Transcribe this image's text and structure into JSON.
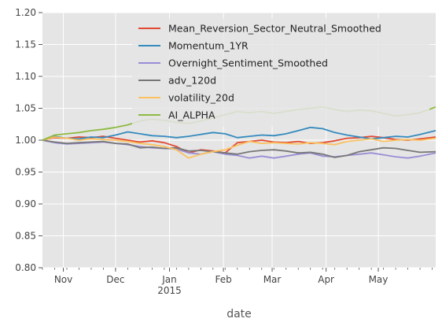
{
  "chart_data": {
    "type": "line",
    "title": "",
    "xlabel": "date",
    "ylabel": "",
    "ylim": [
      0.8,
      1.2
    ],
    "xlim": [
      "2014-10-20",
      "2015-06-03"
    ],
    "grid": true,
    "legend_position": "top-right",
    "y_ticks": [
      {
        "value": 0.8,
        "label": "0.80"
      },
      {
        "value": 0.85,
        "label": "0.85"
      },
      {
        "value": 0.9,
        "label": "0.90"
      },
      {
        "value": 0.95,
        "label": "0.95"
      },
      {
        "value": 1.0,
        "label": "1.00"
      },
      {
        "value": 1.05,
        "label": "1.05"
      },
      {
        "value": 1.1,
        "label": "1.10"
      },
      {
        "value": 1.15,
        "label": "1.15"
      },
      {
        "value": 1.2,
        "label": "1.20"
      }
    ],
    "x_ticks": [
      {
        "date": "2014-11-01",
        "label": "Nov",
        "sublabel": ""
      },
      {
        "date": "2014-12-01",
        "label": "Dec",
        "sublabel": ""
      },
      {
        "date": "2015-01-01",
        "label": "Jan",
        "sublabel": "2015"
      },
      {
        "date": "2015-02-01",
        "label": "Feb",
        "sublabel": ""
      },
      {
        "date": "2015-03-01",
        "label": "Mar",
        "sublabel": ""
      },
      {
        "date": "2015-04-01",
        "label": "Apr",
        "sublabel": ""
      },
      {
        "date": "2015-05-01",
        "label": "May",
        "sublabel": ""
      }
    ],
    "series": [
      {
        "name": "Mean_Reversion_Sector_Neutral_Smoothed",
        "color": "#E24A33",
        "points": [
          [
            "2014-10-20",
            1.0
          ],
          [
            "2014-10-27",
            1.004
          ],
          [
            "2014-11-03",
            1.003
          ],
          [
            "2014-11-10",
            1.005
          ],
          [
            "2014-11-17",
            1.004
          ],
          [
            "2014-11-24",
            1.006
          ],
          [
            "2014-12-01",
            1.003
          ],
          [
            "2014-12-08",
            1.0
          ],
          [
            "2014-12-15",
            0.997
          ],
          [
            "2014-12-22",
            0.999
          ],
          [
            "2014-12-29",
            0.996
          ],
          [
            "2015-01-05",
            0.99
          ],
          [
            "2015-01-12",
            0.98
          ],
          [
            "2015-01-19",
            0.985
          ],
          [
            "2015-01-26",
            0.983
          ],
          [
            "2015-02-02",
            0.98
          ],
          [
            "2015-02-09",
            0.996
          ],
          [
            "2015-02-16",
            0.998
          ],
          [
            "2015-02-23",
            1.0
          ],
          [
            "2015-03-02",
            0.997
          ],
          [
            "2015-03-09",
            0.996
          ],
          [
            "2015-03-16",
            0.998
          ],
          [
            "2015-03-23",
            0.995
          ],
          [
            "2015-03-30",
            0.996
          ],
          [
            "2015-04-06",
            0.999
          ],
          [
            "2015-04-13",
            1.003
          ],
          [
            "2015-04-20",
            1.004
          ],
          [
            "2015-04-27",
            1.006
          ],
          [
            "2015-05-04",
            1.004
          ],
          [
            "2015-05-11",
            1.001
          ],
          [
            "2015-05-18",
            1.0
          ],
          [
            "2015-05-25",
            1.002
          ],
          [
            "2015-06-03",
            1.005
          ]
        ]
      },
      {
        "name": "Momentum_1YR",
        "color": "#348ABD",
        "points": [
          [
            "2014-10-20",
            1.0
          ],
          [
            "2014-10-27",
            1.006
          ],
          [
            "2014-11-03",
            1.003
          ],
          [
            "2014-11-10",
            1.002
          ],
          [
            "2014-11-17",
            1.005
          ],
          [
            "2014-11-24",
            1.004
          ],
          [
            "2014-12-01",
            1.008
          ],
          [
            "2014-12-08",
            1.013
          ],
          [
            "2014-12-15",
            1.01
          ],
          [
            "2014-12-22",
            1.007
          ],
          [
            "2014-12-29",
            1.006
          ],
          [
            "2015-01-05",
            1.004
          ],
          [
            "2015-01-12",
            1.006
          ],
          [
            "2015-01-19",
            1.009
          ],
          [
            "2015-01-26",
            1.012
          ],
          [
            "2015-02-02",
            1.01
          ],
          [
            "2015-02-09",
            1.004
          ],
          [
            "2015-02-16",
            1.006
          ],
          [
            "2015-02-23",
            1.008
          ],
          [
            "2015-03-02",
            1.007
          ],
          [
            "2015-03-09",
            1.01
          ],
          [
            "2015-03-16",
            1.015
          ],
          [
            "2015-03-23",
            1.02
          ],
          [
            "2015-03-30",
            1.018
          ],
          [
            "2015-04-06",
            1.012
          ],
          [
            "2015-04-13",
            1.008
          ],
          [
            "2015-04-20",
            1.005
          ],
          [
            "2015-04-27",
            1.002
          ],
          [
            "2015-05-04",
            1.004
          ],
          [
            "2015-05-11",
            1.006
          ],
          [
            "2015-05-18",
            1.005
          ],
          [
            "2015-05-25",
            1.009
          ],
          [
            "2015-06-03",
            1.015
          ]
        ]
      },
      {
        "name": "Overnight_Sentiment_Smoothed",
        "color": "#988ED5",
        "points": [
          [
            "2014-10-20",
            1.0
          ],
          [
            "2014-10-27",
            0.996
          ],
          [
            "2014-11-03",
            0.994
          ],
          [
            "2014-11-10",
            0.995
          ],
          [
            "2014-11-17",
            0.996
          ],
          [
            "2014-11-24",
            0.997
          ],
          [
            "2014-12-01",
            0.995
          ],
          [
            "2014-12-08",
            0.993
          ],
          [
            "2014-12-15",
            0.99
          ],
          [
            "2014-12-22",
            0.988
          ],
          [
            "2014-12-29",
            0.987
          ],
          [
            "2015-01-05",
            0.986
          ],
          [
            "2015-01-12",
            0.98
          ],
          [
            "2015-01-19",
            0.978
          ],
          [
            "2015-01-26",
            0.982
          ],
          [
            "2015-02-02",
            0.978
          ],
          [
            "2015-02-09",
            0.976
          ],
          [
            "2015-02-16",
            0.972
          ],
          [
            "2015-02-23",
            0.975
          ],
          [
            "2015-03-02",
            0.972
          ],
          [
            "2015-03-09",
            0.975
          ],
          [
            "2015-03-16",
            0.978
          ],
          [
            "2015-03-23",
            0.98
          ],
          [
            "2015-03-30",
            0.975
          ],
          [
            "2015-04-06",
            0.974
          ],
          [
            "2015-04-13",
            0.976
          ],
          [
            "2015-04-20",
            0.978
          ],
          [
            "2015-04-27",
            0.98
          ],
          [
            "2015-05-04",
            0.977
          ],
          [
            "2015-05-11",
            0.974
          ],
          [
            "2015-05-18",
            0.972
          ],
          [
            "2015-05-25",
            0.975
          ],
          [
            "2015-06-03",
            0.98
          ]
        ]
      },
      {
        "name": "adv_120d",
        "color": "#777777",
        "points": [
          [
            "2014-10-20",
            1.0
          ],
          [
            "2014-10-27",
            0.997
          ],
          [
            "2014-11-03",
            0.995
          ],
          [
            "2014-11-10",
            0.996
          ],
          [
            "2014-11-17",
            0.997
          ],
          [
            "2014-11-24",
            0.998
          ],
          [
            "2014-12-01",
            0.995
          ],
          [
            "2014-12-08",
            0.994
          ],
          [
            "2014-12-15",
            0.988
          ],
          [
            "2014-12-22",
            0.989
          ],
          [
            "2014-12-29",
            0.987
          ],
          [
            "2015-01-05",
            0.988
          ],
          [
            "2015-01-12",
            0.983
          ],
          [
            "2015-01-19",
            0.984
          ],
          [
            "2015-01-26",
            0.982
          ],
          [
            "2015-02-02",
            0.98
          ],
          [
            "2015-02-09",
            0.978
          ],
          [
            "2015-02-16",
            0.982
          ],
          [
            "2015-02-23",
            0.984
          ],
          [
            "2015-03-02",
            0.985
          ],
          [
            "2015-03-09",
            0.983
          ],
          [
            "2015-03-16",
            0.98
          ],
          [
            "2015-03-23",
            0.981
          ],
          [
            "2015-03-30",
            0.978
          ],
          [
            "2015-04-06",
            0.973
          ],
          [
            "2015-04-13",
            0.976
          ],
          [
            "2015-04-20",
            0.982
          ],
          [
            "2015-04-27",
            0.985
          ],
          [
            "2015-05-04",
            0.988
          ],
          [
            "2015-05-11",
            0.987
          ],
          [
            "2015-05-18",
            0.984
          ],
          [
            "2015-05-25",
            0.981
          ],
          [
            "2015-06-03",
            0.982
          ]
        ]
      },
      {
        "name": "volatility_20d",
        "color": "#FBC15E",
        "points": [
          [
            "2014-10-20",
            1.0
          ],
          [
            "2014-10-27",
            1.005
          ],
          [
            "2014-11-03",
            1.003
          ],
          [
            "2014-11-10",
            1.0
          ],
          [
            "2014-11-17",
            1.002
          ],
          [
            "2014-11-24",
            1.001
          ],
          [
            "2014-12-01",
            1.0
          ],
          [
            "2014-12-08",
            0.998
          ],
          [
            "2014-12-15",
            0.995
          ],
          [
            "2014-12-22",
            0.993
          ],
          [
            "2014-12-29",
            0.99
          ],
          [
            "2015-01-05",
            0.985
          ],
          [
            "2015-01-12",
            0.972
          ],
          [
            "2015-01-19",
            0.978
          ],
          [
            "2015-01-26",
            0.982
          ],
          [
            "2015-02-02",
            0.985
          ],
          [
            "2015-02-09",
            0.992
          ],
          [
            "2015-02-16",
            0.998
          ],
          [
            "2015-02-23",
            0.995
          ],
          [
            "2015-03-02",
            0.996
          ],
          [
            "2015-03-09",
            0.995
          ],
          [
            "2015-03-16",
            0.994
          ],
          [
            "2015-03-23",
            0.996
          ],
          [
            "2015-03-30",
            0.995
          ],
          [
            "2015-04-06",
            0.993
          ],
          [
            "2015-04-13",
            0.998
          ],
          [
            "2015-04-20",
            1.0
          ],
          [
            "2015-04-27",
            1.002
          ],
          [
            "2015-05-04",
            0.998
          ],
          [
            "2015-05-11",
            1.0
          ],
          [
            "2015-05-18",
            1.001
          ],
          [
            "2015-05-25",
            1.0
          ],
          [
            "2015-06-03",
            1.003
          ]
        ]
      },
      {
        "name": "AI_ALPHA",
        "color": "#8EBA42",
        "points": [
          [
            "2014-10-20",
            1.0
          ],
          [
            "2014-10-27",
            1.008
          ],
          [
            "2014-11-03",
            1.01
          ],
          [
            "2014-11-10",
            1.012
          ],
          [
            "2014-11-17",
            1.015
          ],
          [
            "2014-11-24",
            1.017
          ],
          [
            "2014-12-01",
            1.02
          ],
          [
            "2014-12-08",
            1.024
          ],
          [
            "2014-12-15",
            1.03
          ],
          [
            "2014-12-22",
            1.033
          ],
          [
            "2014-12-29",
            1.031
          ],
          [
            "2015-01-05",
            1.028
          ],
          [
            "2015-01-12",
            1.026
          ],
          [
            "2015-01-19",
            1.03
          ],
          [
            "2015-01-26",
            1.035
          ],
          [
            "2015-02-02",
            1.04
          ],
          [
            "2015-02-09",
            1.045
          ],
          [
            "2015-02-16",
            1.043
          ],
          [
            "2015-02-23",
            1.045
          ],
          [
            "2015-03-02",
            1.042
          ],
          [
            "2015-03-09",
            1.045
          ],
          [
            "2015-03-16",
            1.048
          ],
          [
            "2015-03-23",
            1.05
          ],
          [
            "2015-03-30",
            1.052
          ],
          [
            "2015-04-06",
            1.048
          ],
          [
            "2015-04-13",
            1.045
          ],
          [
            "2015-04-20",
            1.047
          ],
          [
            "2015-04-27",
            1.046
          ],
          [
            "2015-05-04",
            1.042
          ],
          [
            "2015-05-11",
            1.038
          ],
          [
            "2015-05-18",
            1.04
          ],
          [
            "2015-05-25",
            1.043
          ],
          [
            "2015-06-03",
            1.052
          ]
        ]
      }
    ]
  },
  "style": {
    "plot_background": "#E5E5E5",
    "grid_color": "#FFFFFF",
    "legend_background": "#E5E5E5"
  }
}
